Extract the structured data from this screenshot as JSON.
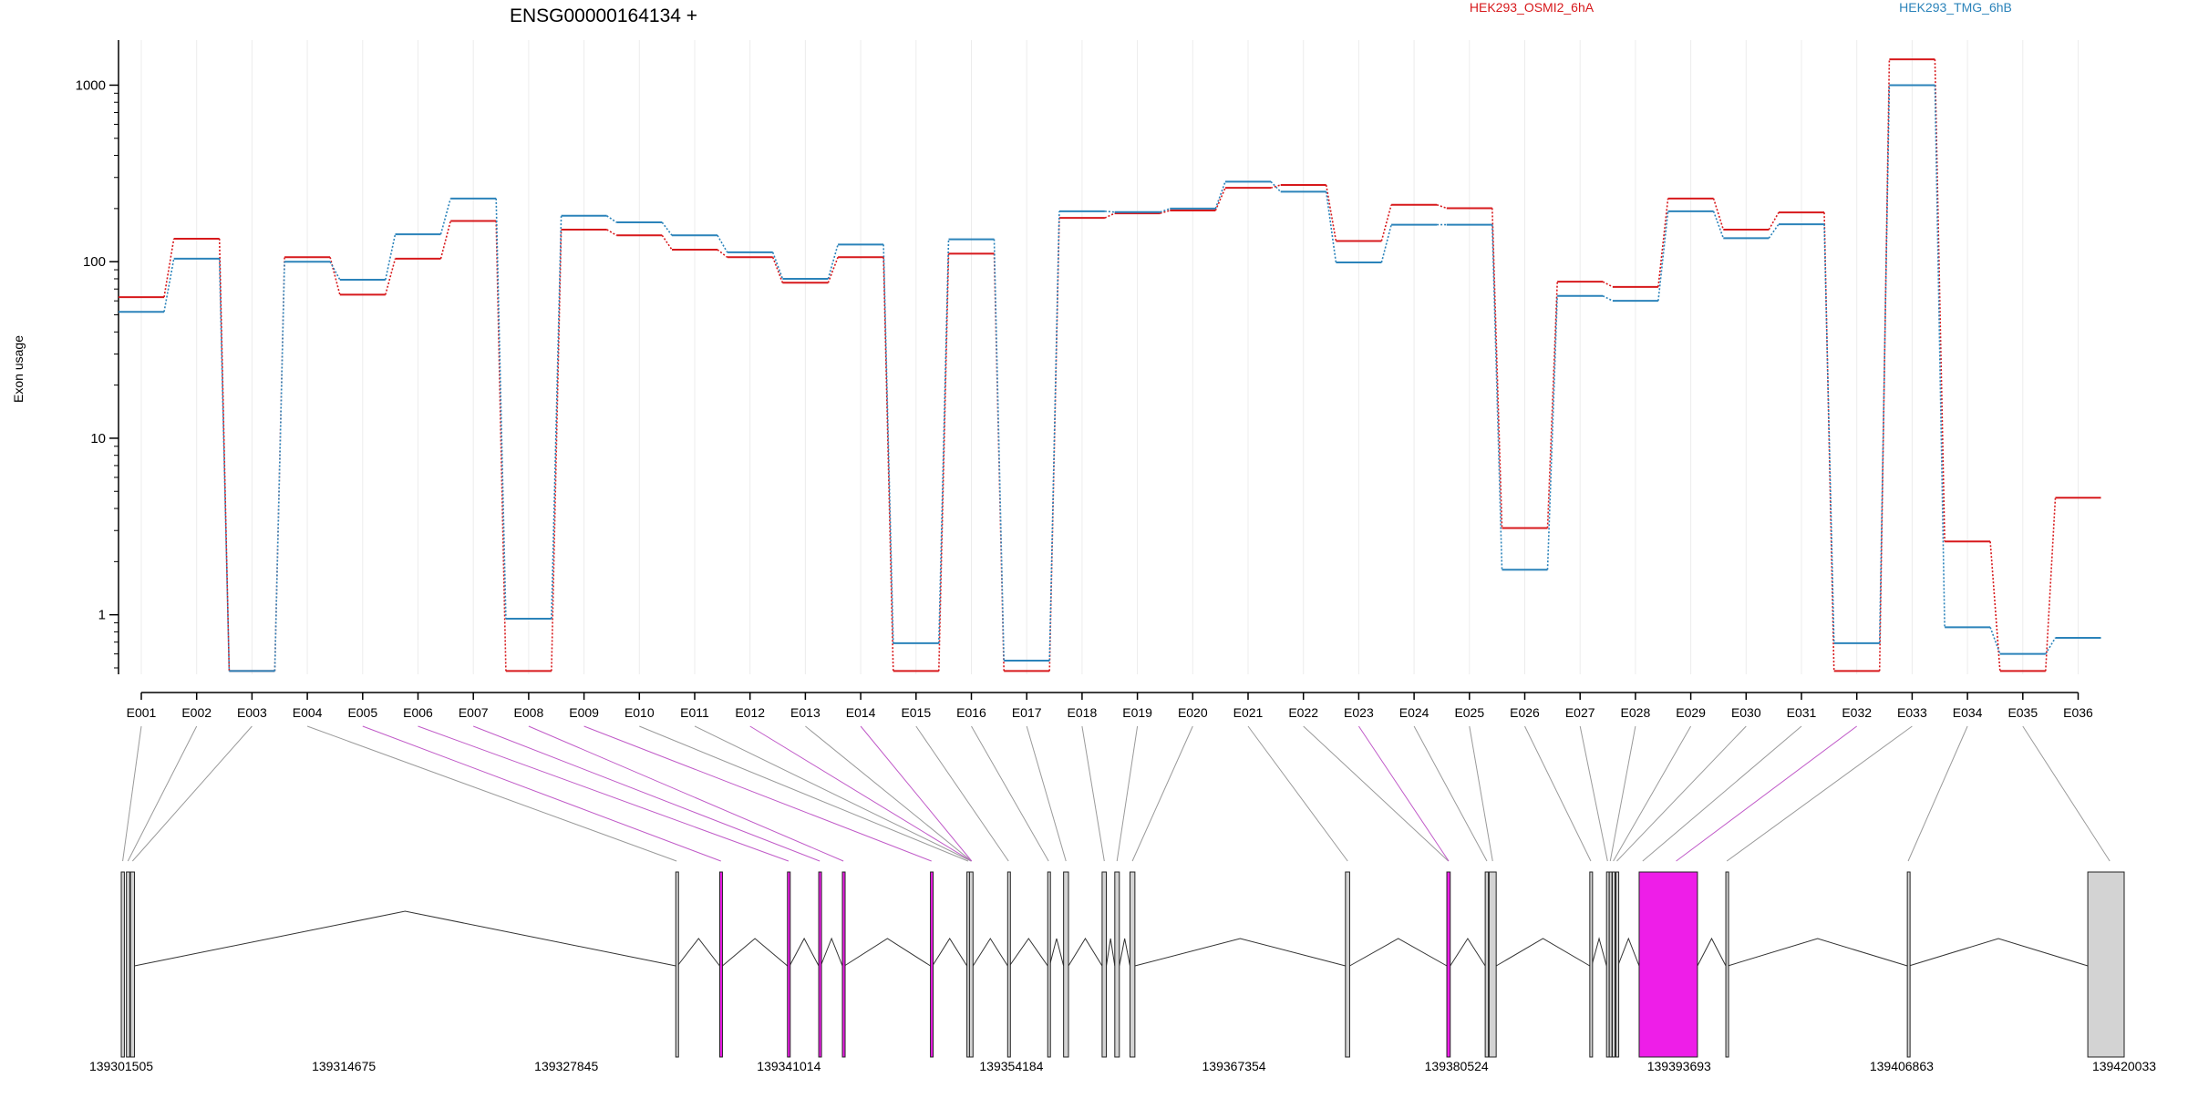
{
  "chart_data": {
    "type": "line",
    "title": "ENSG00000164134 +",
    "ylabel": "Exon usage",
    "xlabel": "",
    "y_scale": "log",
    "ylim": [
      0.46,
      1800
    ],
    "y_ticks": [
      1,
      10,
      100,
      1000
    ],
    "grid": "vertical",
    "legend_position": "top-right",
    "categories": [
      "E001",
      "E002",
      "E003",
      "E004",
      "E005",
      "E006",
      "E007",
      "E008",
      "E009",
      "E010",
      "E011",
      "E012",
      "E013",
      "E014",
      "E015",
      "E016",
      "E017",
      "E018",
      "E019",
      "E020",
      "E021",
      "E022",
      "E023",
      "E024",
      "E025",
      "E026",
      "E027",
      "E028",
      "E029",
      "E030",
      "E031",
      "E032",
      "E033",
      "E034",
      "E035",
      "E036"
    ],
    "series": [
      {
        "name": "HEK293_OSMI2_6hA",
        "color": "#d7191c",
        "values": [
          63,
          135,
          0.48,
          106,
          65,
          104,
          170,
          0.48,
          152,
          141,
          117,
          106,
          76,
          106,
          0.48,
          111,
          0.48,
          177,
          188,
          195,
          262,
          272,
          131,
          210,
          201,
          3.1,
          77,
          72,
          228,
          152,
          190,
          0.48,
          1400,
          2.6,
          0.48,
          4.6
        ]
      },
      {
        "name": "HEK293_TMG_6hB",
        "color": "#2b83ba",
        "values": [
          52,
          104,
          0.48,
          100,
          79,
          143,
          228,
          0.95,
          182,
          167,
          141,
          113,
          80,
          125,
          0.69,
          134,
          0.55,
          193,
          191,
          200,
          284,
          249,
          99,
          162,
          162,
          1.8,
          64,
          60,
          193,
          136,
          163,
          0.69,
          1000,
          0.85,
          0.6,
          0.74
        ]
      }
    ],
    "gene_model": {
      "genomic_ticks": [
        "139301505",
        "139314675",
        "139327845",
        "139341014",
        "139354184",
        "139367354",
        "139380524",
        "139393693",
        "139406863",
        "139420033"
      ],
      "highlight_color": "#ee1ee8",
      "exon_color": "#d3d3d3",
      "exons": [
        {
          "start": 139301505,
          "end": 139301690,
          "highlight": false
        },
        {
          "start": 139301810,
          "end": 139302010,
          "highlight": false
        },
        {
          "start": 139302050,
          "end": 139302290,
          "highlight": false
        },
        {
          "start": 139334320,
          "end": 139334420,
          "highlight": false
        },
        {
          "start": 139336920,
          "end": 139337080,
          "highlight": true
        },
        {
          "start": 139340930,
          "end": 139341060,
          "highlight": true
        },
        {
          "start": 139342780,
          "end": 139342900,
          "highlight": true
        },
        {
          "start": 139344180,
          "end": 139344300,
          "highlight": true
        },
        {
          "start": 139349390,
          "end": 139349510,
          "highlight": true
        },
        {
          "start": 139351550,
          "end": 139351680,
          "highlight": false
        },
        {
          "start": 139351700,
          "end": 139351910,
          "highlight": false
        },
        {
          "start": 139353960,
          "end": 139354070,
          "highlight": false
        },
        {
          "start": 139356330,
          "end": 139356440,
          "highlight": false
        },
        {
          "start": 139357270,
          "end": 139357560,
          "highlight": false
        },
        {
          "start": 139359550,
          "end": 139359800,
          "highlight": false
        },
        {
          "start": 139360300,
          "end": 139360570,
          "highlight": false
        },
        {
          "start": 139361200,
          "end": 139361490,
          "highlight": false
        },
        {
          "start": 139373950,
          "end": 139374200,
          "highlight": false
        },
        {
          "start": 139379950,
          "end": 139380150,
          "highlight": true
        },
        {
          "start": 139382220,
          "end": 139382410,
          "highlight": false
        },
        {
          "start": 139382450,
          "end": 139382870,
          "highlight": false
        },
        {
          "start": 139388410,
          "end": 139388520,
          "highlight": false
        },
        {
          "start": 139389400,
          "end": 139389510,
          "highlight": false
        },
        {
          "start": 139389560,
          "end": 139389680,
          "highlight": false
        },
        {
          "start": 139389740,
          "end": 139389860,
          "highlight": false
        },
        {
          "start": 139389960,
          "end": 139390070,
          "highlight": false
        },
        {
          "start": 139391330,
          "end": 139394780,
          "highlight": true
        },
        {
          "start": 139396460,
          "end": 139396580,
          "highlight": false
        },
        {
          "start": 139407200,
          "end": 139407300,
          "highlight": false
        },
        {
          "start": 139417880,
          "end": 139420033,
          "highlight": false
        }
      ],
      "introns": [
        [
          139302290,
          139334320
        ],
        [
          139334420,
          139336920
        ],
        [
          139337080,
          139340930
        ],
        [
          139341060,
          139342780
        ],
        [
          139342900,
          139344180
        ],
        [
          139344300,
          139349390
        ],
        [
          139349510,
          139351550
        ],
        [
          139351910,
          139353960
        ],
        [
          139354070,
          139356330
        ],
        [
          139356440,
          139357270
        ],
        [
          139357560,
          139359550
        ],
        [
          139359800,
          139360300
        ],
        [
          139360570,
          139361200
        ],
        [
          139361490,
          139373950
        ],
        [
          139374200,
          139379950
        ],
        [
          139380150,
          139382220
        ],
        [
          139382870,
          139388410
        ],
        [
          139388520,
          139389400
        ],
        [
          139390070,
          139391330
        ],
        [
          139394780,
          139396460
        ],
        [
          139396580,
          139407200
        ],
        [
          139407300,
          139417880
        ]
      ],
      "exon_links": [
        {
          "pos": 139301590,
          "highlight": false
        },
        {
          "pos": 139301900,
          "highlight": false
        },
        {
          "pos": 139302170,
          "highlight": false
        },
        {
          "pos": 139334370,
          "highlight": false
        },
        {
          "pos": 139336990,
          "highlight": true
        },
        {
          "pos": 139340990,
          "highlight": true
        },
        {
          "pos": 139342840,
          "highlight": true
        },
        {
          "pos": 139344240,
          "highlight": true
        },
        {
          "pos": 139349450,
          "highlight": true
        },
        {
          "pos": 139351620,
          "highlight": false
        },
        {
          "pos": 139351800,
          "highlight": false
        },
        {
          "pos": 139351810,
          "highlight": true
        },
        {
          "pos": 139351820,
          "highlight": false
        },
        {
          "pos": 139351830,
          "highlight": true
        },
        {
          "pos": 139354010,
          "highlight": false
        },
        {
          "pos": 139356380,
          "highlight": false
        },
        {
          "pos": 139357410,
          "highlight": false
        },
        {
          "pos": 139359680,
          "highlight": false
        },
        {
          "pos": 139360430,
          "highlight": false
        },
        {
          "pos": 139361340,
          "highlight": false
        },
        {
          "pos": 139374080,
          "highlight": false
        },
        {
          "pos": 139380040,
          "highlight": false
        },
        {
          "pos": 139380060,
          "highlight": true
        },
        {
          "pos": 139382320,
          "highlight": false
        },
        {
          "pos": 139382660,
          "highlight": false
        },
        {
          "pos": 139388470,
          "highlight": false
        },
        {
          "pos": 139389460,
          "highlight": false
        },
        {
          "pos": 139389620,
          "highlight": false
        },
        {
          "pos": 139389800,
          "highlight": false
        },
        {
          "pos": 139390010,
          "highlight": false
        },
        {
          "pos": 139391540,
          "highlight": false
        },
        {
          "pos": 139393520,
          "highlight": true
        },
        {
          "pos": 139396520,
          "highlight": false
        },
        {
          "pos": 139407250,
          "highlight": false
        },
        {
          "pos": 139419180,
          "highlight": false
        }
      ]
    }
  }
}
